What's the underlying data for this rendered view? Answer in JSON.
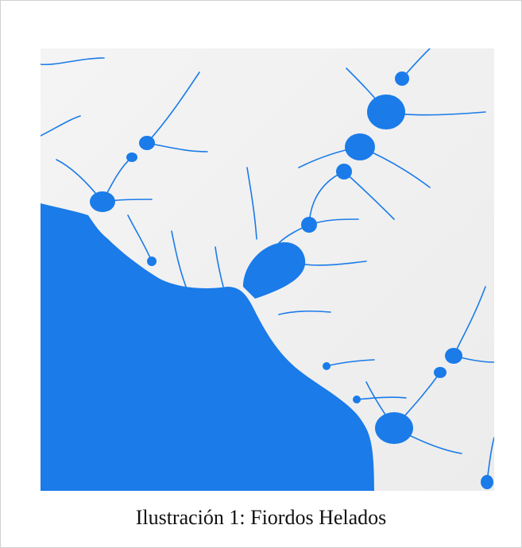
{
  "figure": {
    "caption": "Ilustración 1: Fiordos Helados"
  }
}
